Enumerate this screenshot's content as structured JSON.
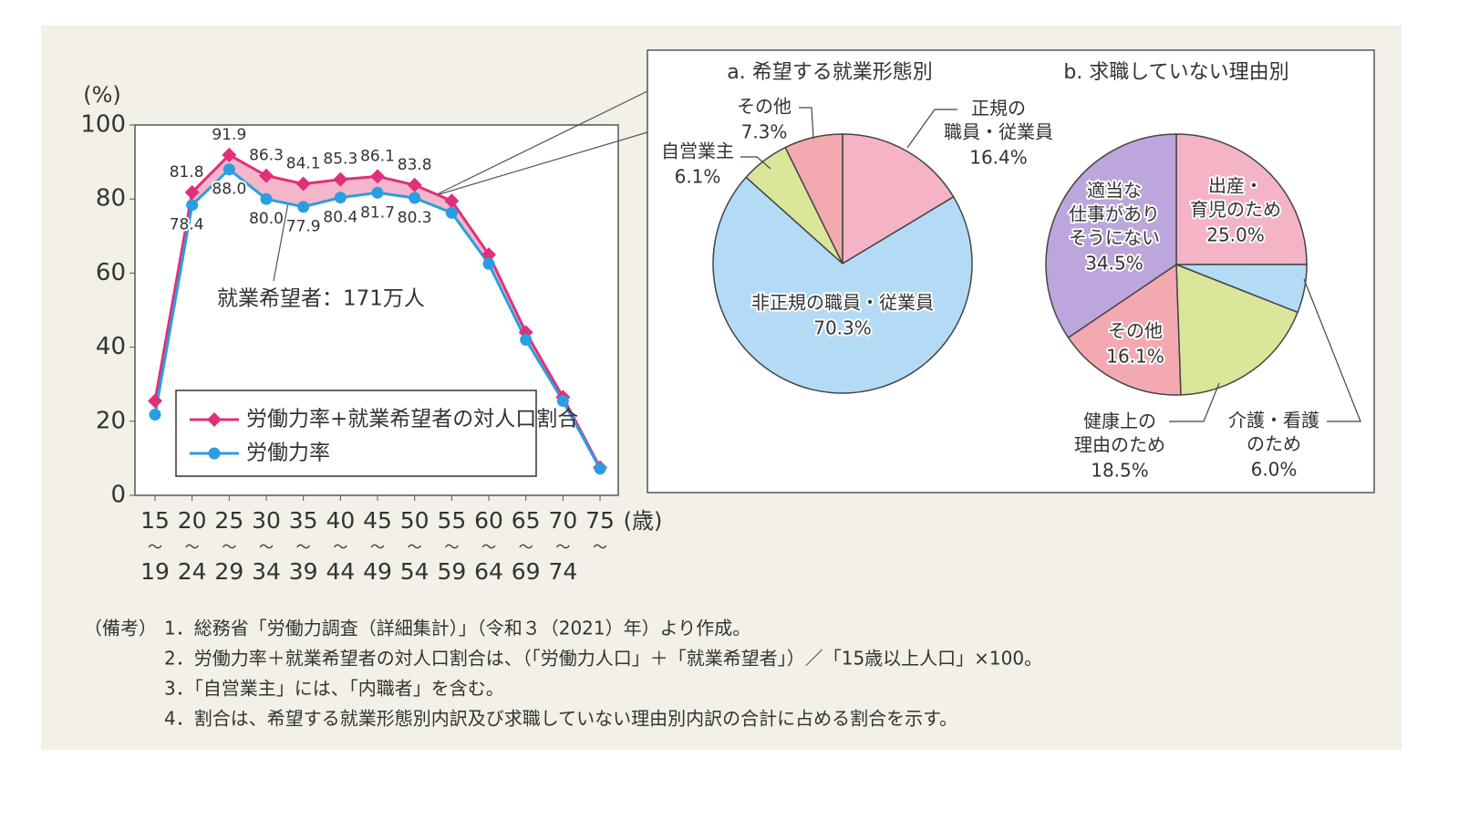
{
  "chart_data": [
    {
      "type": "line",
      "ylabel": "(%)",
      "xlabel": "(歳)",
      "categories": [
        "15〜19",
        "20〜24",
        "25〜29",
        "30〜34",
        "35〜39",
        "40〜44",
        "45〜49",
        "50〜54",
        "55〜59",
        "60〜64",
        "65〜69",
        "70〜74",
        "75〜"
      ],
      "series": [
        {
          "name": "労働力率+就業希望者の対人口割合",
          "color": "#e0307a",
          "marker": "diamond",
          "values": [
            25.5,
            81.8,
            91.9,
            86.3,
            84.1,
            85.3,
            86.1,
            83.8,
            79.5,
            65,
            44,
            26.5,
            7.5
          ],
          "value_labels": [
            null,
            "81.8",
            "91.9",
            "86.3",
            "84.1",
            "85.3",
            "86.1",
            "83.8",
            null,
            null,
            null,
            null,
            null
          ]
        },
        {
          "name": "労働力率",
          "color": "#2a9ee0",
          "marker": "circle",
          "values": [
            21.8,
            78.4,
            88.0,
            80.0,
            77.9,
            80.4,
            81.7,
            80.3,
            76.3,
            62.5,
            42,
            25.5,
            7.2
          ],
          "value_labels": [
            null,
            "78.4",
            "88.0",
            "80.0",
            "77.9",
            "80.4",
            "81.7",
            "80.3",
            null,
            null,
            null,
            null,
            null
          ]
        }
      ],
      "band_color": "#f4b6cb",
      "annotation": "就業希望者：171万人",
      "ylim": [
        0,
        100
      ],
      "yticks": [
        0,
        20,
        40,
        60,
        80,
        100
      ]
    },
    {
      "type": "pie",
      "title": "a. 希望する就業形態別",
      "labels": [
        [
          "正規の",
          "職員・従業員"
        ],
        [
          "非正規の職員・従業員"
        ],
        [
          "自営業主"
        ],
        [
          "その他"
        ]
      ],
      "values": [
        16.4,
        70.3,
        6.1,
        7.3
      ],
      "value_labels": [
        "16.4%",
        "70.3%",
        "6.1%",
        "7.3%"
      ],
      "colors": [
        "#f4b4c6",
        "#b4dbf6",
        "#dbe69a",
        "#f3a9b0"
      ]
    },
    {
      "type": "pie",
      "title": "b. 求職していない理由別",
      "labels": [
        [
          "出産・",
          "育児のため"
        ],
        [
          "介護・看護",
          "のため"
        ],
        [
          "健康上の",
          "理由のため"
        ],
        [
          "その他"
        ],
        [
          "適当な",
          "仕事があり",
          "そうにない"
        ]
      ],
      "values": [
        25.0,
        6.0,
        18.5,
        16.1,
        34.5
      ],
      "value_labels": [
        "25.0%",
        "6.0%",
        "18.5%",
        "16.1%",
        "34.5%"
      ],
      "colors": [
        "#f4b4c6",
        "#b4dbf6",
        "#dbe69a",
        "#f3a9b0",
        "#bca6dc"
      ]
    }
  ],
  "notes": {
    "label": "（備考）",
    "items": [
      "1．総務省「労働力調査（詳細集計）」（令和３（2021）年）より作成。",
      "2．労働力率＋就業希望者の対人口割合は、（「労働力人口」＋「就業希望者」）／「15歳以上人口」×100。",
      "3．「自営業主」には、「内職者」を含む。",
      "4．割合は、希望する就業形態別内訳及び求職していない理由別内訳の合計に占める割合を示す。"
    ]
  }
}
